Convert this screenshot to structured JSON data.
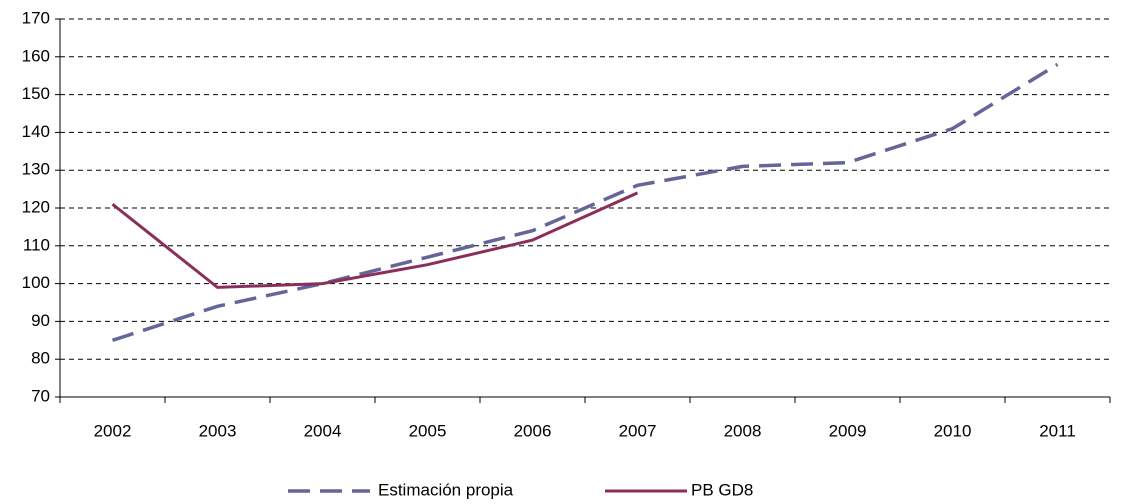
{
  "chart_data": {
    "type": "line",
    "categories": [
      "2002",
      "2003",
      "2004",
      "2005",
      "2006",
      "2007",
      "2008",
      "2009",
      "2010",
      "2011"
    ],
    "series": [
      {
        "name": "Estimación propia",
        "color": "#65659a",
        "dashed": true,
        "values": [
          85,
          94,
          100,
          107,
          114,
          126,
          131,
          132,
          141,
          158
        ]
      },
      {
        "name": "PB GD8",
        "color": "#8b2f5a",
        "dashed": false,
        "values": [
          121,
          99,
          100,
          105,
          111.5,
          124,
          null,
          null,
          null,
          null
        ]
      }
    ],
    "ylim": [
      70,
      170
    ],
    "yticks": [
      70,
      80,
      90,
      100,
      110,
      120,
      130,
      140,
      150,
      160,
      170
    ],
    "grid": true,
    "legend": "bottom"
  }
}
